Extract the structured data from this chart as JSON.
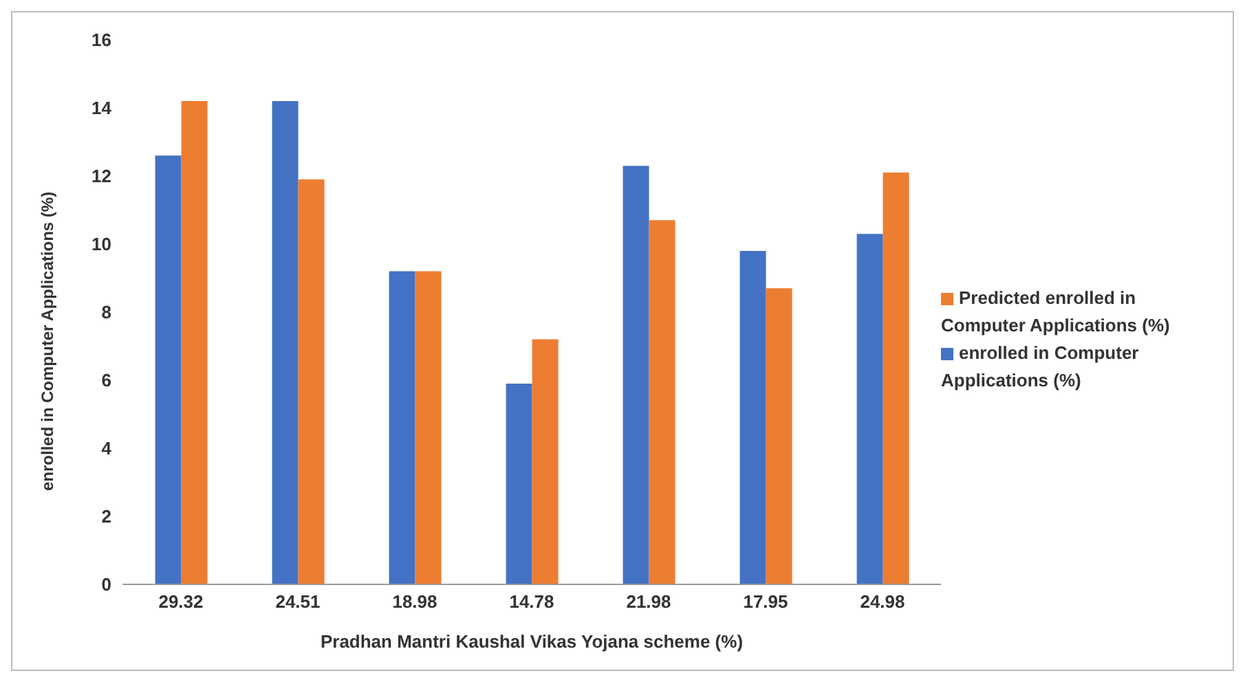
{
  "chart_data": {
    "type": "bar",
    "xlabel": "Pradhan Mantri Kaushal Vikas Yojana scheme (%)",
    "ylabel": "enrolled in Computer Applications (%)",
    "categories": [
      "29.32",
      "24.51",
      "18.98",
      "14.78",
      "21.98",
      "17.95",
      "24.98"
    ],
    "series": [
      {
        "name": "enrolled in Computer Applications (%)",
        "color": "#4472c4",
        "values": [
          12.6,
          14.2,
          9.2,
          5.9,
          12.3,
          9.8,
          10.3
        ]
      },
      {
        "name": "Predicted  enrolled in Computer Applications (%)",
        "color": "#ed7d31",
        "values": [
          14.2,
          11.9,
          9.2,
          7.2,
          10.7,
          8.7,
          12.1
        ]
      }
    ],
    "ylim": [
      0,
      16
    ],
    "yticks": [
      0,
      2,
      4,
      6,
      8,
      10,
      12,
      14,
      16
    ],
    "grid": false,
    "legend": "right"
  }
}
